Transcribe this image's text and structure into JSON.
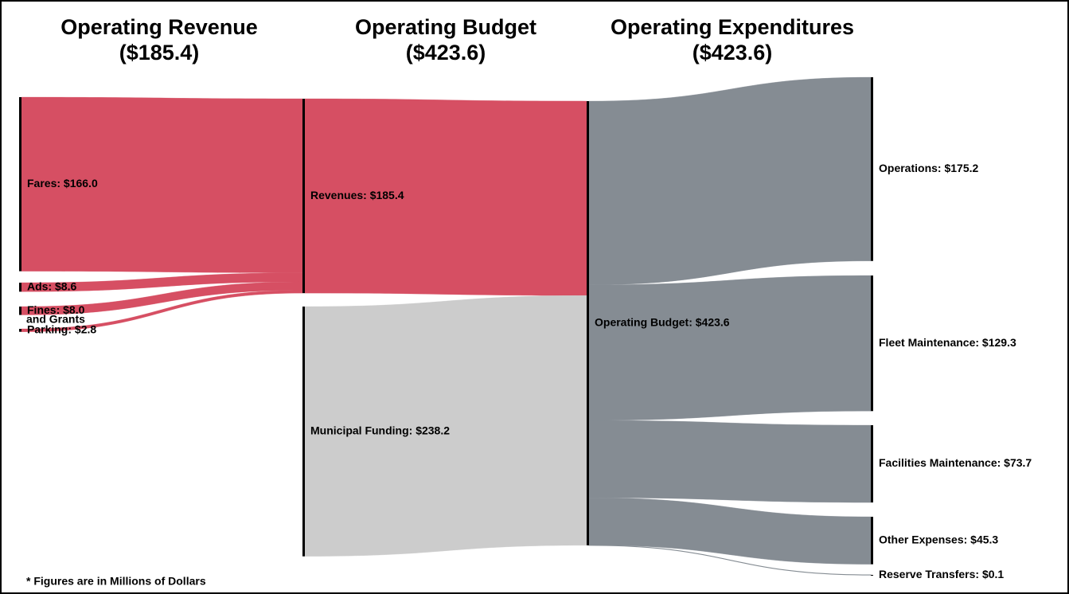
{
  "chart_data": {
    "type": "sankey",
    "columns": [
      {
        "title": "Operating Revenue",
        "total": "($185.4)"
      },
      {
        "title": "Operating Budget",
        "total": "($423.6)"
      },
      {
        "title": "Operating Expenditures",
        "total": "($423.6)"
      }
    ],
    "nodes": [
      {
        "label": "Fares: $166.0",
        "value": 166.0,
        "column": 0,
        "color": "#d64f63"
      },
      {
        "label": "Ads: $8.6",
        "value": 8.6,
        "column": 0,
        "color": "#d64f63"
      },
      {
        "label": "Fines: $8.0",
        "value": 8.0,
        "column": 0,
        "color": "#d64f63"
      },
      {
        "label": "Parking: $2.8",
        "value": 2.8,
        "column": 0,
        "color": "#d64f63"
      },
      {
        "label": "Revenues: $185.4",
        "value": 185.4,
        "column": 1,
        "color": "#d64f63"
      },
      {
        "label": "Municipal Funding: $238.2",
        "value": 238.2,
        "column": 1,
        "color": "#cccccc"
      },
      {
        "label": "Operating Budget: $423.6",
        "value": 423.6,
        "column": 2,
        "color": "#858c93"
      },
      {
        "label": "Operations: $175.2",
        "value": 175.2,
        "column": 3
      },
      {
        "label": "Fleet Maintenance: $129.3",
        "value": 129.3,
        "column": 3
      },
      {
        "label": "Facilities Maintenance: $73.7",
        "value": 73.7,
        "column": 3
      },
      {
        "label": "Other Expenses: $45.3",
        "value": 45.3,
        "column": 3
      },
      {
        "label": "Reserve Transfers: $0.1",
        "value": 0.1,
        "column": 3
      }
    ],
    "links": [
      {
        "source": 0,
        "target": 4,
        "value": 166.0
      },
      {
        "source": 1,
        "target": 4,
        "value": 8.6
      },
      {
        "source": 2,
        "target": 4,
        "value": 8.0
      },
      {
        "source": 3,
        "target": 4,
        "value": 2.8
      },
      {
        "source": 4,
        "target": 6,
        "value": 185.4
      },
      {
        "source": 5,
        "target": 6,
        "value": 238.2
      },
      {
        "source": 6,
        "target": 7,
        "value": 175.2
      },
      {
        "source": 6,
        "target": 8,
        "value": 129.3
      },
      {
        "source": 6,
        "target": 9,
        "value": 73.7
      },
      {
        "source": 6,
        "target": 10,
        "value": 45.3
      },
      {
        "source": 6,
        "target": 11,
        "value": 0.1
      }
    ],
    "annotations": [
      "and Grants"
    ],
    "footnote": "* Figures are in Millions of Dollars"
  }
}
